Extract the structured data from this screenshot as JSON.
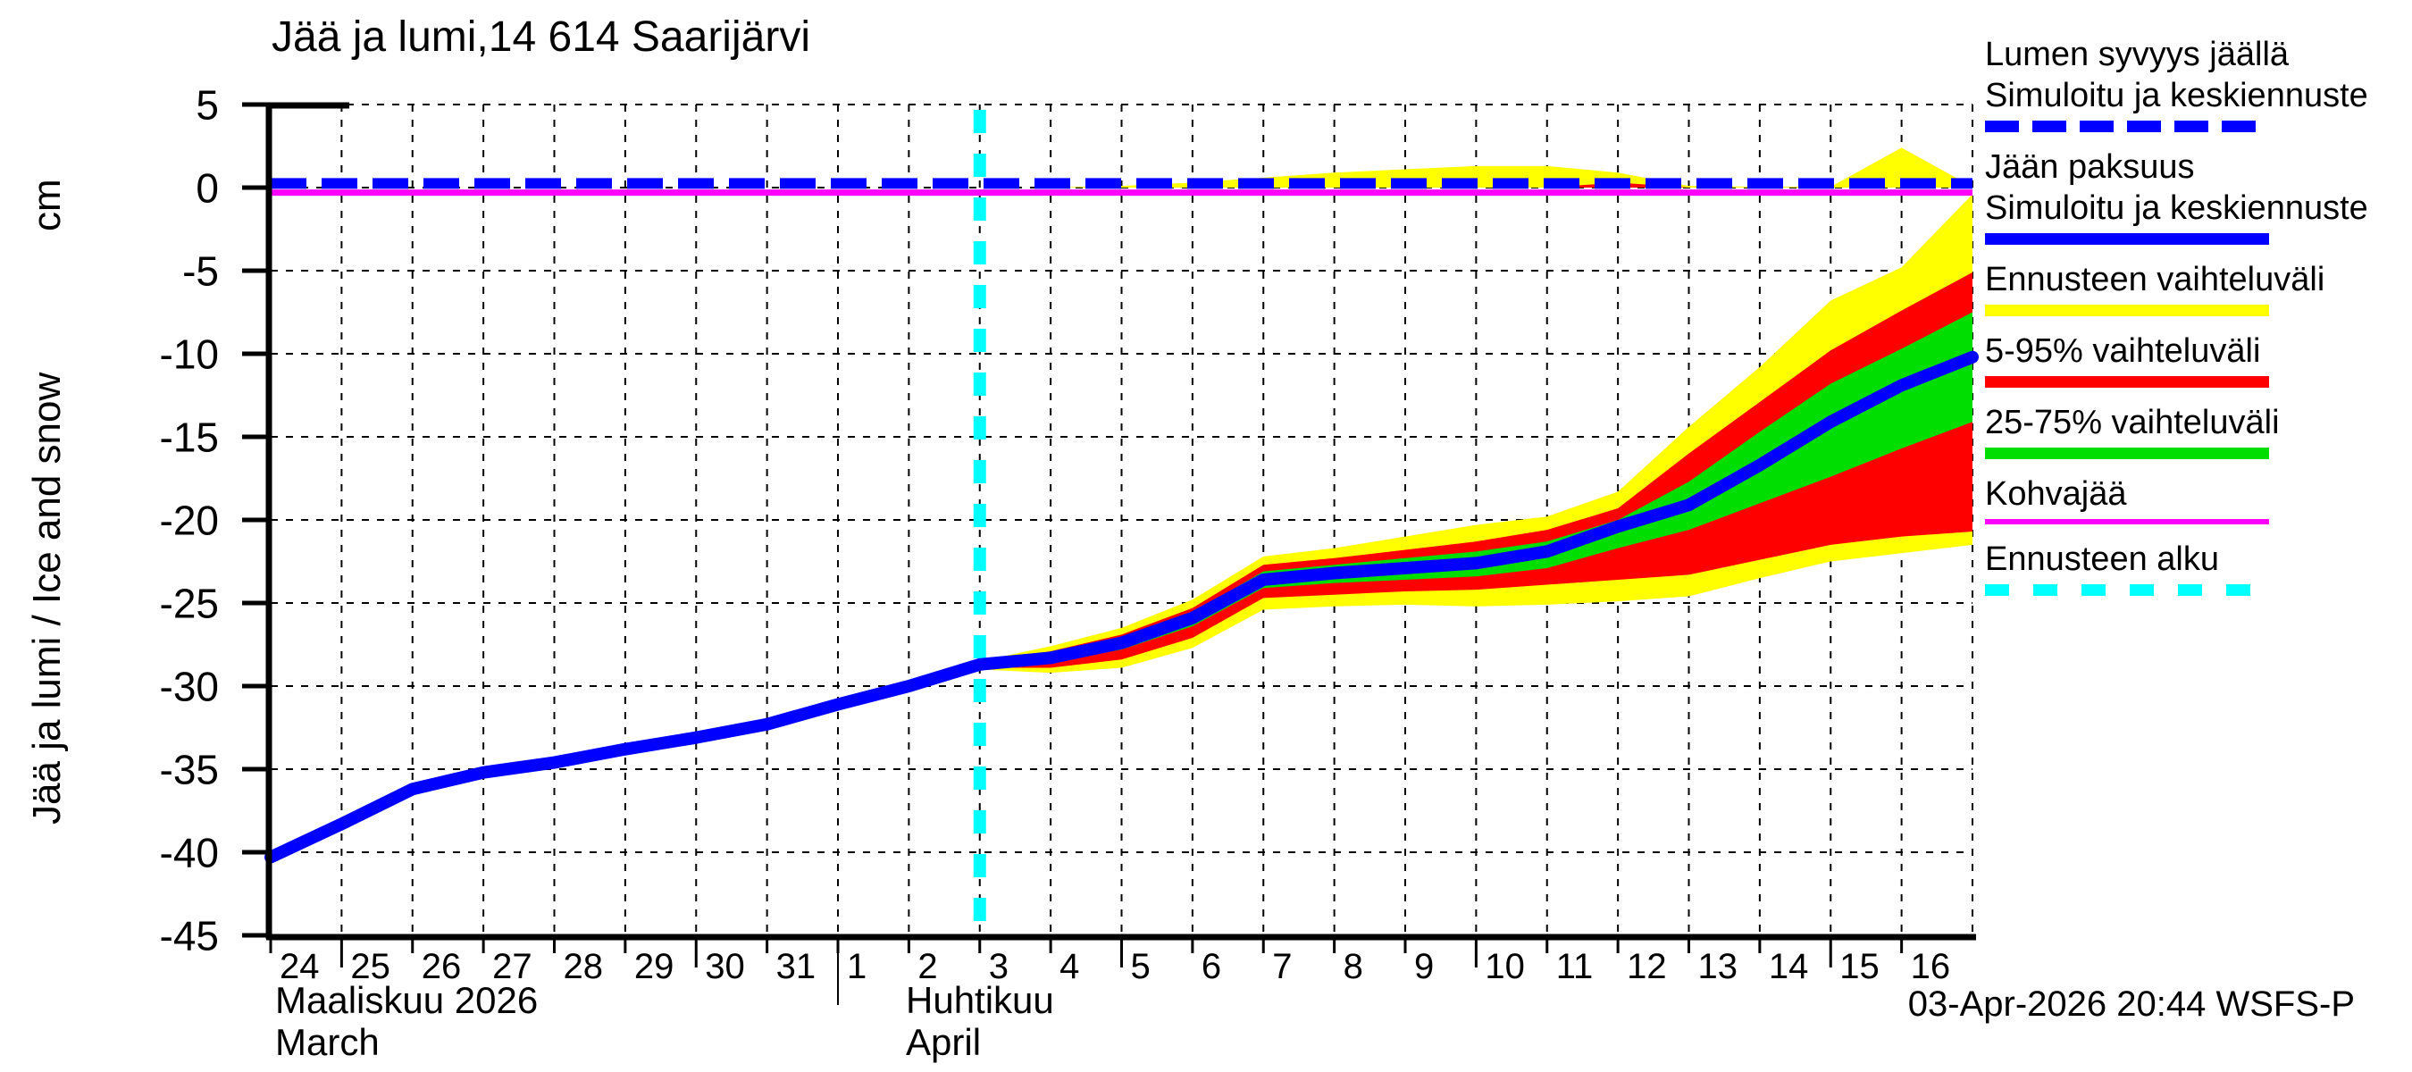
{
  "title": "Jää ja lumi,14 614 Saarijärvi",
  "y_axis": {
    "label": "Jää ja lumi / Ice and snow",
    "unit": "cm",
    "ticks": [
      5,
      0,
      -5,
      -10,
      -15,
      -20,
      -25,
      -30,
      -35,
      -40,
      -45
    ]
  },
  "x_axis": {
    "month1": {
      "fi": "Maaliskuu 2026",
      "en": "March",
      "days": [
        24,
        25,
        26,
        27,
        28,
        29,
        30,
        31
      ]
    },
    "month2": {
      "fi": "Huhtikuu",
      "en": "April",
      "days": [
        1,
        2,
        3,
        4,
        5,
        6,
        7,
        8,
        9,
        10,
        11,
        12,
        13,
        14,
        15,
        16
      ]
    }
  },
  "footer": {
    "timestamp": "03-Apr-2026 20:44 WSFS-P"
  },
  "colors": {
    "blue": "#0000ff",
    "yellow": "#ffff00",
    "red": "#ff0000",
    "green": "#00dd00",
    "magenta": "#ff00ff",
    "cyan": "#00ffff",
    "grid": "#000000"
  },
  "legend": [
    {
      "lines": [
        "Lumen syvyys jäällä",
        "Simuloitu ja keskiennuste"
      ],
      "color": "#0000ff",
      "dash": "38 15",
      "height": 13
    },
    {
      "lines": [
        "Jään paksuus",
        "Simuloitu ja keskiennuste"
      ],
      "color": "#0000ff",
      "dash": null,
      "height": 13
    },
    {
      "lines": [
        "Ennusteen vaihteluväli"
      ],
      "color": "#ffff00",
      "dash": null,
      "height": 13
    },
    {
      "lines": [
        "5-95% vaihteluväli"
      ],
      "color": "#ff0000",
      "dash": null,
      "height": 13
    },
    {
      "lines": [
        "25-75% vaihteluväli"
      ],
      "color": "#00dd00",
      "dash": null,
      "height": 13
    },
    {
      "lines": [
        "Kohvajää"
      ],
      "color": "#ff00ff",
      "dash": null,
      "height": 6
    },
    {
      "lines": [
        "Ennusteen alku"
      ],
      "color": "#00ffff",
      "dash": "27 27",
      "height": 13
    }
  ],
  "chart_data": {
    "type": "line",
    "subtype": "ensemble-forecast with uncertainty bands",
    "title": "Jää ja lumi,14 614 Saarijärvi",
    "ylabel": "Jää ja lumi / Ice and snow (cm)",
    "ylim": [
      5,
      -45
    ],
    "x_unit": "days since 2026-03-24",
    "x_range_days": [
      0,
      24
    ],
    "grid": true,
    "legend_position": "right",
    "forecast_start_day": 10,
    "forecast_start_date": "2026-04-03",
    "ice_median": {
      "name": "Jään paksuus - Simuloitu ja keskiennuste",
      "x": [
        0,
        1,
        2,
        3,
        4,
        5,
        6,
        7,
        8,
        9,
        10,
        11,
        12,
        13,
        14,
        15,
        16,
        17,
        18,
        19,
        20,
        21,
        22,
        23,
        24
      ],
      "y": [
        -40.3,
        -38.3,
        -36.2,
        -35.2,
        -34.6,
        -33.8,
        -33.1,
        -32.3,
        -31.1,
        -30.0,
        -28.7,
        -28.3,
        -27.4,
        -25.9,
        -23.6,
        -23.2,
        -22.9,
        -22.6,
        -21.9,
        -20.4,
        -19.1,
        -16.7,
        -14.1,
        -11.9,
        -10.2
      ]
    },
    "ice_bands": {
      "x": [
        10,
        11,
        12,
        13,
        14,
        15,
        16,
        17,
        18,
        19,
        20,
        21,
        22,
        23,
        24
      ],
      "yellow_top": [
        -28.5,
        -27.6,
        -26.5,
        -24.8,
        -22.2,
        -21.7,
        -21.0,
        -20.3,
        -19.8,
        -18.3,
        -14.4,
        -10.8,
        -6.8,
        -4.8,
        -0.4
      ],
      "red_top": [
        -28.6,
        -27.9,
        -26.9,
        -25.3,
        -22.7,
        -22.3,
        -21.8,
        -21.3,
        -20.6,
        -19.3,
        -16.0,
        -12.9,
        -9.8,
        -7.4,
        -5.1
      ],
      "green_top": [
        -28.6,
        -28.0,
        -27.1,
        -25.6,
        -23.1,
        -22.7,
        -22.3,
        -21.9,
        -21.3,
        -20.0,
        -17.7,
        -14.7,
        -11.8,
        -9.7,
        -7.5
      ],
      "green_bottom": [
        -28.8,
        -28.6,
        -27.8,
        -26.4,
        -24.1,
        -23.8,
        -23.6,
        -23.4,
        -22.9,
        -21.7,
        -20.6,
        -19.0,
        -17.4,
        -15.7,
        -14.1
      ],
      "red_bottom": [
        -28.9,
        -28.9,
        -28.4,
        -27.1,
        -24.7,
        -24.5,
        -24.3,
        -24.2,
        -23.9,
        -23.6,
        -23.3,
        -22.4,
        -21.5,
        -21.0,
        -20.7
      ],
      "yellow_bottom": [
        -29.0,
        -29.2,
        -28.9,
        -27.7,
        -25.4,
        -25.2,
        -25.1,
        -25.2,
        -25.1,
        -24.9,
        -24.6,
        -23.5,
        -22.5,
        -22.0,
        -21.5
      ]
    },
    "snow_median": {
      "name": "Lumen syvyys jäällä - Simuloitu ja keskiennuste",
      "y_constant": 0
    },
    "kohvajaa": {
      "name": "Kohvajää",
      "y_constant": -0.3
    },
    "snow_bands": {
      "x": [
        10,
        11,
        12,
        13,
        14,
        15,
        16,
        17,
        18,
        19,
        20,
        21,
        22,
        23,
        24
      ],
      "yellow_top": [
        0,
        0,
        0.1,
        0.3,
        0.6,
        0.9,
        1.1,
        1.3,
        1.3,
        0.9,
        0.1,
        0.05,
        0.05,
        2.4,
        0.05
      ],
      "red_top": [
        0,
        0,
        0,
        0,
        0,
        0,
        0,
        0,
        0,
        0.3,
        0,
        0,
        0,
        0,
        0
      ]
    }
  }
}
